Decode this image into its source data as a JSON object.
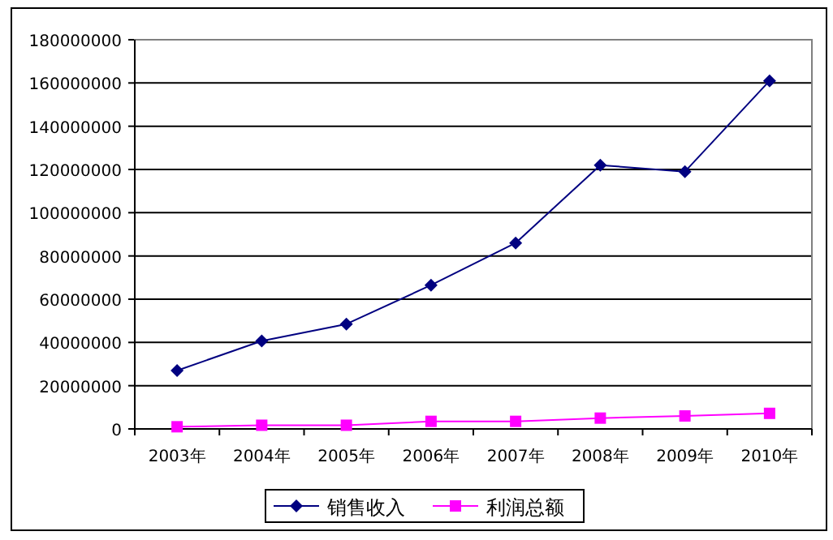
{
  "chart_data": {
    "type": "line",
    "categories": [
      "2003年",
      "2004年",
      "2005年",
      "2006年",
      "2007年",
      "2008年",
      "2009年",
      "2010年"
    ],
    "series": [
      {
        "name": "销售收入",
        "color": "#000080",
        "marker": "diamond",
        "values": [
          27000000,
          40700000,
          48500000,
          66500000,
          86000000,
          122000000,
          119000000,
          161000000
        ]
      },
      {
        "name": "利润总额",
        "color": "#ff00ff",
        "marker": "square",
        "values": [
          1000000,
          1700000,
          1700000,
          3500000,
          3500000,
          5000000,
          6000000,
          7200000
        ]
      }
    ],
    "ylim": [
      0,
      180000000
    ],
    "yticks": [
      0,
      20000000,
      40000000,
      60000000,
      80000000,
      100000000,
      120000000,
      140000000,
      160000000,
      180000000
    ],
    "grid": "y",
    "legend": "bottom"
  }
}
